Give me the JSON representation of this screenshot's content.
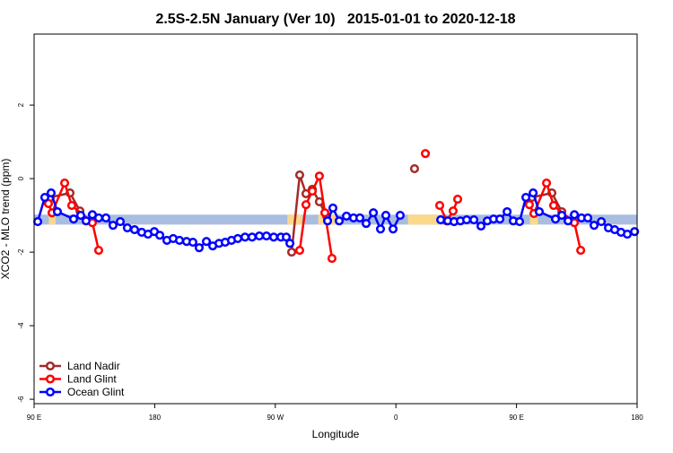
{
  "chart_data": {
    "type": "line",
    "title": "2.5S-2.5N January (Ver 10)   2015-01-01 to 2020-12-18",
    "x_label": "Longitude",
    "y_label": "XCO2 - MLO trend (ppm)",
    "xlim": [
      90,
      540
    ],
    "ylim": [
      -6.12,
      3.93
    ],
    "xticks": [
      {
        "value": 90,
        "label": "90 E"
      },
      180,
      {
        "value": 270,
        "label": "90 W"
      },
      {
        "value": 360,
        "label": "0"
      },
      {
        "value": 450,
        "label": "90 E"
      },
      {
        "value": 540,
        "label": "180"
      }
    ],
    "yticks": [
      -6,
      -4,
      -2,
      0,
      2
    ],
    "legend": "bottom-left",
    "band": {
      "ylim": [
        -1.25,
        -0.98
      ],
      "color": "#a9bde0",
      "highlight_color": "#fcd98a",
      "highlights": [
        [
          101,
          106
        ],
        [
          279,
          290
        ],
        [
          302,
          316
        ],
        [
          369,
          393
        ],
        [
          460,
          466
        ]
      ]
    },
    "series": [
      {
        "name": "Land Nadir",
        "color": "#a52a2a",
        "x": [
          102.1,
          116.8,
          124.2,
          null,
          282.2,
          288.2,
          292.9,
          297.6,
          302.9,
          308.3,
          null,
          373.9,
          null,
          461.7,
          476.4,
          483.8
        ],
        "values": [
          -0.51,
          -0.39,
          -0.88,
          null,
          -2.0,
          0.1,
          -0.41,
          -0.29,
          -0.63,
          -1.02,
          null,
          0.27,
          null,
          -0.51,
          -0.39,
          -0.9
        ]
      },
      {
        "name": "Land Glint",
        "color": "#ff0000",
        "x": [
          100.7,
          103.4,
          112.8,
          118.1,
          133.5,
          138.2,
          null,
          288.2,
          292.9,
          297.6,
          302.9,
          307.0,
          312.3,
          null,
          382.0,
          null,
          392.7,
          398.0,
          402.7,
          406.1,
          null,
          459.6,
          463.0,
          472.4,
          477.7,
          493.2,
          497.9
        ],
        "values": [
          -0.68,
          -0.93,
          -0.12,
          -0.73,
          -1.2,
          -1.95,
          null,
          -1.95,
          -0.71,
          -0.34,
          0.07,
          -0.93,
          -2.17,
          null,
          0.68,
          null,
          -0.73,
          -1.15,
          -0.88,
          -0.56,
          null,
          -0.71,
          -0.95,
          -0.12,
          -0.73,
          -1.2,
          -1.95
        ]
      },
      {
        "name": "Ocean Glint",
        "color": "#0000ff",
        "x": [
          92.7,
          98.0,
          102.7,
          107.4,
          119.5,
          124.8,
          128.8,
          133.5,
          138.2,
          143.6,
          148.9,
          154.3,
          159.6,
          165.0,
          170.3,
          175.0,
          179.7,
          183.8,
          189.1,
          193.8,
          198.5,
          203.8,
          208.5,
          213.2,
          218.6,
          223.3,
          228.0,
          232.6,
          237.3,
          242.0,
          247.4,
          252.7,
          258.1,
          263.4,
          268.8,
          274.2,
          278.2,
          280.9,
          null,
          309.0,
          313.0,
          317.7,
          323.1,
          328.4,
          333.1,
          337.8,
          343.2,
          348.5,
          352.5,
          357.9,
          363.2,
          null,
          393.4,
          398.7,
          403.4,
          408.1,
          412.8,
          418.2,
          423.5,
          428.2,
          432.9,
          437.6,
          443.0,
          447.6,
          452.3,
          457.0,
          462.4,
          467.0,
          479.1,
          483.8,
          488.5,
          493.2,
          498.5,
          503.2,
          507.9,
          513.3,
          518.6,
          523.3,
          528.0,
          532.7,
          538.1
        ],
        "values": [
          -1.17,
          -0.51,
          -0.39,
          -0.9,
          -1.1,
          -1.0,
          -1.15,
          -0.98,
          -1.07,
          -1.07,
          -1.27,
          -1.17,
          -1.34,
          -1.39,
          -1.46,
          -1.51,
          -1.44,
          -1.54,
          -1.68,
          -1.63,
          -1.68,
          -1.71,
          -1.73,
          -1.88,
          -1.71,
          -1.83,
          -1.76,
          -1.73,
          -1.68,
          -1.63,
          -1.59,
          -1.59,
          -1.56,
          -1.56,
          -1.59,
          -1.59,
          -1.59,
          -1.76,
          null,
          -1.15,
          -0.8,
          -1.15,
          -1.02,
          -1.07,
          -1.07,
          -1.22,
          -0.93,
          -1.37,
          -1.0,
          -1.37,
          -1.0,
          null,
          -1.12,
          -1.15,
          -1.17,
          -1.15,
          -1.12,
          -1.12,
          -1.29,
          -1.15,
          -1.1,
          -1.1,
          -0.9,
          -1.15,
          -1.17,
          -0.51,
          -0.39,
          -0.9,
          -1.1,
          -1.0,
          -1.15,
          -0.98,
          -1.07,
          -1.07,
          -1.27,
          -1.17,
          -1.34,
          -1.39,
          -1.46,
          -1.51,
          -1.44
        ]
      }
    ]
  }
}
